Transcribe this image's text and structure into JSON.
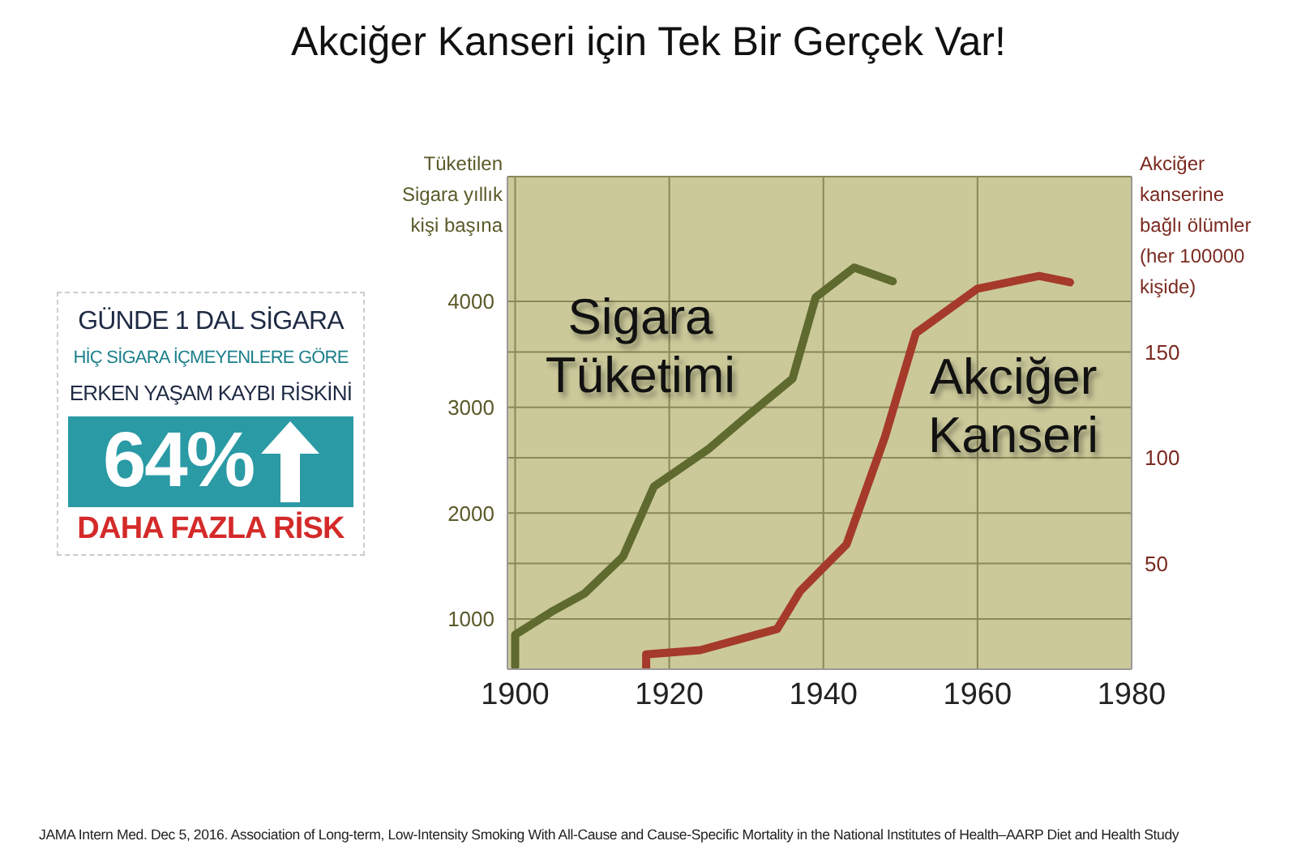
{
  "chart_data": [
    {
      "type": "line",
      "title": "Akciğer Kanseri için Tek Bir Gerçek Var!",
      "ylabel": "Tüketilen Sigara yıllık kişi başına",
      "y2label": "Akciğer kanserine bağlı ölümler (her 100000 kişide)",
      "xlim": [
        1899,
        1980
      ],
      "xticks": [
        1900,
        1920,
        1940,
        1960,
        1980
      ],
      "ylim": [
        525,
        5180
      ],
      "yticks": [
        1000,
        2000,
        3000,
        4000
      ],
      "y2lim": [
        0,
        233
      ],
      "y2ticks": [
        50,
        100,
        150
      ],
      "grid": true,
      "series": [
        {
          "name": "Sigara Tüketimi",
          "color": "#5f6a2e",
          "x": [
            1900,
            1900,
            1905,
            1909,
            1914,
            1918,
            1925,
            1930,
            1936,
            1939,
            1944,
            1949
          ],
          "values": [
            550,
            850,
            1080,
            1240,
            1590,
            2250,
            2600,
            2910,
            3270,
            4040,
            4320,
            4190
          ]
        },
        {
          "name": "Akciğer Kanseri",
          "color": "#a53a2a",
          "axis": "y2",
          "x": [
            1917,
            1917,
            1924,
            1934,
            1937,
            1943,
            1948,
            1952,
            1960,
            1968,
            1972
          ],
          "values": [
            1,
            7,
            9,
            19,
            37,
            59,
            110,
            159,
            180,
            186,
            183
          ]
        }
      ],
      "annotations": [
        "JAMA Intern Med. Dec 5, 2016. Association of Long-term, Low-Intensity Smoking With All-Cause and Cause-Specific Mortality in the National Institutes of Health–AARP Diet and Health Study"
      ]
    },
    {
      "type": "other",
      "annotations": [
        "GÜNDE 1 DAL SİGARA",
        "HİÇ SİGARA İÇMEYENLERE GÖRE",
        "ERKEN YAŞAM KAYBI RİSKİNİ",
        "64%",
        "DAHA FAZLA RİSK"
      ]
    }
  ]
}
